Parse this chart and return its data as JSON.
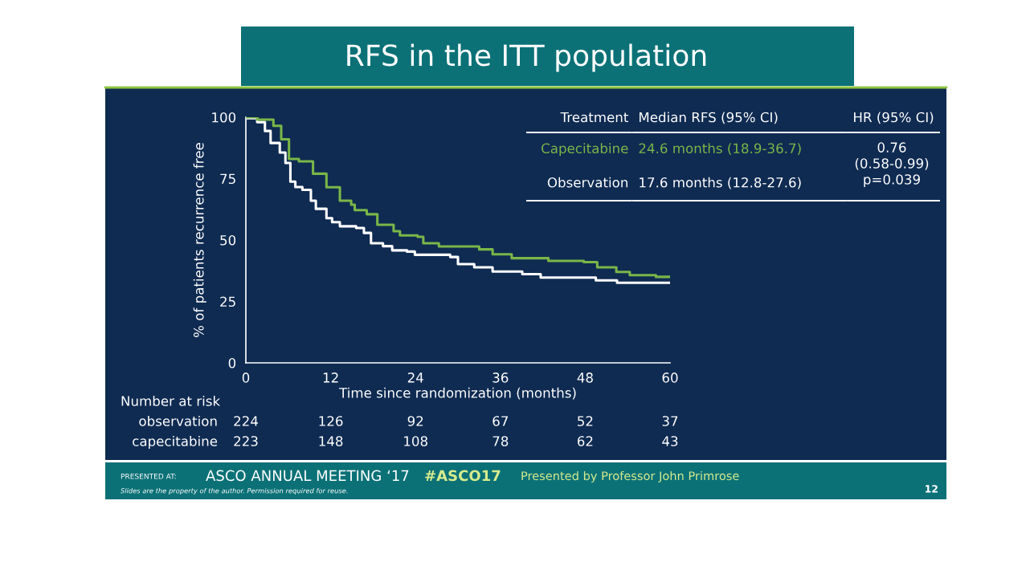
{
  "chart_data": {
    "type": "step",
    "title": "RFS in the ITT population",
    "xlabel": "Time since randomization (months)",
    "ylabel": "% of patients recurrence free",
    "xlim": [
      0,
      60
    ],
    "xticks": [
      0,
      12,
      24,
      36,
      48,
      60
    ],
    "ylim": [
      0,
      100
    ],
    "yticks": [
      0,
      25,
      50,
      75,
      100
    ],
    "grid": false,
    "legend": false,
    "series": [
      {
        "name": "Capecitabine",
        "color": "#7ab648",
        "x": [
          0,
          1.6,
          3.9,
          5.0,
          6.1,
          7.5,
          9.5,
          11.4,
          13.3,
          14.9,
          15.4,
          17.1,
          18.6,
          20.9,
          21.8,
          24.3,
          25.1,
          27.3,
          33.0,
          34.9,
          37.6,
          42.8,
          47.8,
          49.7,
          52.4,
          54.3,
          58.0,
          60
        ],
        "values": [
          100,
          99,
          96.5,
          91,
          83,
          82,
          77,
          71.5,
          66,
          64.4,
          62.2,
          60.5,
          56.2,
          53.6,
          51.9,
          51.3,
          48.7,
          47.4,
          46.2,
          44.2,
          42.6,
          41.5,
          41,
          38.9,
          37,
          35.7,
          35,
          35
        ]
      },
      {
        "name": "Observation",
        "color": "#ffffff",
        "x": [
          0,
          0.1,
          1.6,
          2.7,
          3.5,
          4.8,
          5.6,
          6.3,
          7.0,
          8.0,
          9.2,
          9.9,
          11.4,
          12.2,
          13.3,
          15.6,
          16.7,
          17.7,
          19.4,
          20.7,
          22.8,
          23.9,
          28.9,
          30.0,
          32.3,
          34.9,
          39.1,
          41.7,
          49.5,
          52.5,
          60
        ],
        "values": [
          100,
          99.6,
          98,
          94.4,
          89.5,
          85.6,
          81.4,
          73.8,
          71.6,
          70.4,
          66,
          62.7,
          58.9,
          57.3,
          55.6,
          54.9,
          52.9,
          48.7,
          47.5,
          45.8,
          45.3,
          44,
          43.1,
          40.2,
          38.9,
          37.2,
          36.1,
          34.7,
          33.6,
          32.6,
          32.6
        ]
      }
    ],
    "annotations": [
      "Treatment",
      "Median RFS (95% CI)",
      "HR (95% CI)",
      "24.6 months (18.9-36.7)",
      "0.76\n(0.58-0.99)\np=0.039",
      "17.6 months (12.8-27.6)",
      "Number at risk",
      "observation",
      "capecitabine",
      "224",
      "126",
      "92",
      "67",
      "52",
      "37",
      "223",
      "148",
      "108",
      "78",
      "62",
      "43",
      "PRESENTED AT:",
      "ASCO ANNUAL MEETING ‘17",
      "#ASCO17",
      "Presented by Professor John Primrose",
      "Slides are the property of the author. Permission required for reuse.",
      "12"
    ]
  }
}
